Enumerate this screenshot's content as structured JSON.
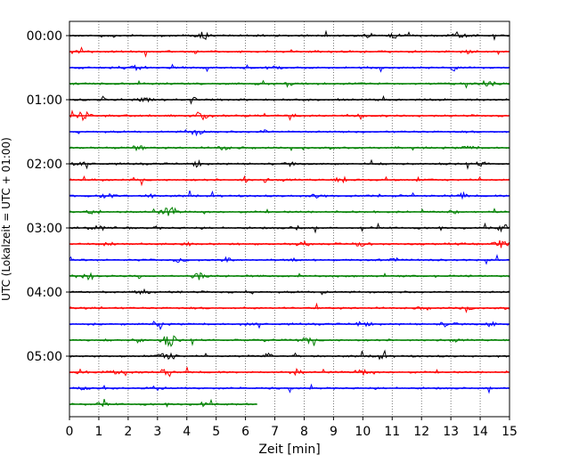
{
  "chart_data": {
    "type": "line",
    "title": "",
    "xlabel": "Zeit  [min]",
    "ylabel": "UTC (Lokalzeit = UTC + 01:00)",
    "xlim": [
      0,
      15
    ],
    "x_ticks": [
      0,
      1,
      2,
      3,
      4,
      5,
      6,
      7,
      8,
      9,
      10,
      11,
      12,
      13,
      14,
      15
    ],
    "x_tick_labels": [
      "0",
      "1",
      "2",
      "3",
      "4",
      "5",
      "6",
      "7",
      "8",
      "9",
      "10",
      "11",
      "12",
      "13",
      "14",
      "15"
    ],
    "y_tick_labels": [
      "00:00",
      "01:00",
      "02:00",
      "03:00",
      "04:00",
      "05:00"
    ],
    "trace_interval_min": 15,
    "grid": "x-dotted",
    "colors": [
      "#000000",
      "#ff0000",
      "#0000ff",
      "#008000"
    ],
    "traces": [
      {
        "start": "00:00",
        "end_min": 15,
        "color": "#000000"
      },
      {
        "start": "00:15",
        "end_min": 15,
        "color": "#ff0000"
      },
      {
        "start": "00:30",
        "end_min": 15,
        "color": "#0000ff"
      },
      {
        "start": "00:45",
        "end_min": 15,
        "color": "#008000"
      },
      {
        "start": "01:00",
        "end_min": 15,
        "color": "#000000"
      },
      {
        "start": "01:15",
        "end_min": 15,
        "color": "#ff0000"
      },
      {
        "start": "01:30",
        "end_min": 15,
        "color": "#0000ff"
      },
      {
        "start": "01:45",
        "end_min": 15,
        "color": "#008000"
      },
      {
        "start": "02:00",
        "end_min": 15,
        "color": "#000000"
      },
      {
        "start": "02:15",
        "end_min": 15,
        "color": "#ff0000"
      },
      {
        "start": "02:30",
        "end_min": 15,
        "color": "#0000ff"
      },
      {
        "start": "02:45",
        "end_min": 15,
        "color": "#008000"
      },
      {
        "start": "03:00",
        "end_min": 15,
        "color": "#000000"
      },
      {
        "start": "03:15",
        "end_min": 15,
        "color": "#ff0000"
      },
      {
        "start": "03:30",
        "end_min": 15,
        "color": "#0000ff"
      },
      {
        "start": "03:45",
        "end_min": 15,
        "color": "#008000"
      },
      {
        "start": "04:00",
        "end_min": 15,
        "color": "#000000"
      },
      {
        "start": "04:15",
        "end_min": 15,
        "color": "#ff0000"
      },
      {
        "start": "04:30",
        "end_min": 15,
        "color": "#0000ff"
      },
      {
        "start": "04:45",
        "end_min": 15,
        "color": "#008000"
      },
      {
        "start": "05:00",
        "end_min": 15,
        "color": "#000000"
      },
      {
        "start": "05:15",
        "end_min": 15,
        "color": "#ff0000"
      },
      {
        "start": "05:30",
        "end_min": 15,
        "color": "#0000ff"
      },
      {
        "start": "05:45",
        "end_min": 6.4,
        "color": "#008000"
      }
    ]
  }
}
